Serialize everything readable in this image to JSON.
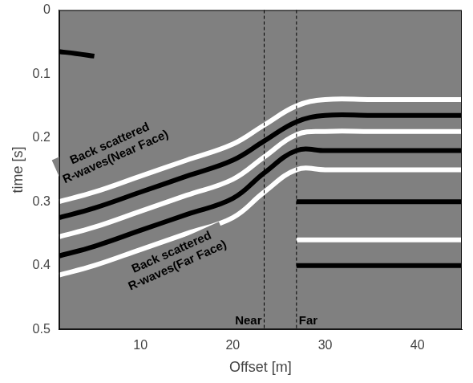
{
  "chart_data": {
    "type": "line",
    "x_label": "Offset [m]",
    "y_label": "time [s]",
    "xlim": [
      1.2,
      44.8
    ],
    "xticks": [
      10,
      20,
      30,
      40
    ],
    "ylim": [
      0,
      0.5
    ],
    "yticks": [
      0,
      0.1,
      0.2,
      0.3,
      0.4,
      0.5
    ],
    "grid": false,
    "series": [
      {
        "color": "#000000",
        "x": [
          1.2,
          5,
          10,
          15,
          20,
          23.4,
          26.9,
          30,
          35,
          40,
          44.8
        ],
        "values": [
          0.325,
          0.31,
          0.285,
          0.26,
          0.235,
          0.205,
          0.175,
          0.165,
          0.165,
          0.165,
          0.165
        ]
      },
      {
        "color": "#ffffff",
        "x": [
          1.2,
          5,
          10,
          15,
          20,
          23.4,
          26.9,
          30,
          35,
          40,
          44.8
        ],
        "values": [
          0.3,
          0.285,
          0.26,
          0.235,
          0.21,
          0.18,
          0.15,
          0.14,
          0.14,
          0.14,
          0.14
        ]
      },
      {
        "color": "#ffffff",
        "x": [
          1.2,
          5,
          10,
          15,
          20,
          23.4,
          26.9,
          30,
          35,
          40,
          44.8
        ],
        "values": [
          0.355,
          0.34,
          0.315,
          0.29,
          0.265,
          0.23,
          0.195,
          0.19,
          0.19,
          0.19,
          0.19
        ]
      },
      {
        "color": "#000000",
        "x": [
          1.2,
          5,
          10,
          15,
          20,
          23.4,
          26.9,
          30,
          35,
          40,
          44.8
        ],
        "values": [
          0.385,
          0.37,
          0.345,
          0.32,
          0.295,
          0.255,
          0.22,
          0.22,
          0.22,
          0.22,
          0.22
        ]
      },
      {
        "color": "#ffffff",
        "x": [
          1.2,
          5,
          10,
          15,
          20,
          23.4,
          26.9,
          30,
          35,
          40,
          44.8
        ],
        "values": [
          0.415,
          0.4,
          0.375,
          0.35,
          0.325,
          0.285,
          0.25,
          0.25,
          0.25,
          0.25,
          0.25
        ]
      },
      {
        "color": "#000000",
        "x": [
          26.9,
          30,
          35,
          40,
          44.8
        ],
        "values": [
          0.3,
          0.3,
          0.3,
          0.3,
          0.3
        ]
      },
      {
        "color": "#ffffff",
        "x": [
          26.9,
          30,
          35,
          40,
          44.8
        ],
        "values": [
          0.36,
          0.36,
          0.36,
          0.36,
          0.36
        ]
      },
      {
        "color": "#000000",
        "x": [
          26.9,
          30,
          35,
          40,
          44.8
        ],
        "values": [
          0.4,
          0.4,
          0.4,
          0.4,
          0.4
        ]
      },
      {
        "color": "#000000",
        "x": [
          1.2,
          3,
          5
        ],
        "values": [
          0.065,
          0.068,
          0.072
        ]
      }
    ],
    "annotations": [
      {
        "text": [
          "Back scattered",
          "R-waves(Near Face)"
        ],
        "x": 7,
        "y": 0.22
      },
      {
        "text": [
          "Back scattered",
          "R-waves(Far Face)"
        ],
        "x": 13.7,
        "y": 0.39
      }
    ],
    "vlines": [
      {
        "x": 23.4,
        "label": "Near"
      },
      {
        "x": 26.9,
        "label": "Far"
      }
    ]
  }
}
